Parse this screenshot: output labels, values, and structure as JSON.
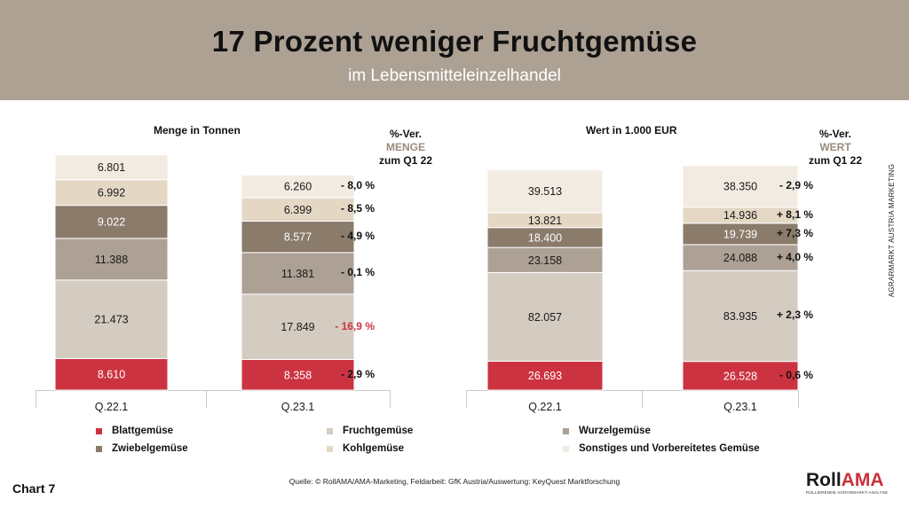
{
  "header": {
    "title": "17 Prozent weniger Fruchtgemüse",
    "subtitle": "im Lebensmitteleinzelhandel"
  },
  "colors": {
    "Blattgemuese": "#cc3340",
    "Fruchtgemuese": "#d4cbc1",
    "Wurzelgemuese": "#ada094",
    "Zwiebelgemuese": "#8a7b6b",
    "Kohlgemuese": "#e4d8c5",
    "Sonstiges": "#f1ebe1",
    "banner": "#ada194",
    "negative_highlight": "#cc3340"
  },
  "chart_data": [
    {
      "type": "stacked-bar",
      "title": "Menge in Tonnen",
      "categories": [
        "Q.22.1",
        "Q.23.1"
      ],
      "series": [
        {
          "name": "Blattgemüse",
          "values": [
            8610,
            8358
          ],
          "labels": [
            "8.610",
            "8.358"
          ],
          "change": "- 2,9 %"
        },
        {
          "name": "Fruchtgemüse",
          "values": [
            21473,
            17849
          ],
          "labels": [
            "21.473",
            "17.849"
          ],
          "change": "- 16,9 %"
        },
        {
          "name": "Wurzelgemüse",
          "values": [
            11388,
            11381
          ],
          "labels": [
            "11.388",
            "11.381"
          ],
          "change": "- 0,1 %"
        },
        {
          "name": "Zwiebelgemüse",
          "values": [
            9022,
            8577
          ],
          "labels": [
            "9.022",
            "8.577"
          ],
          "change": "- 4,9 %"
        },
        {
          "name": "Kohlgemüse",
          "values": [
            6992,
            6399
          ],
          "labels": [
            "6.992",
            "6.399"
          ],
          "change": "- 8,5 %"
        },
        {
          "name": "Sonstiges und Vorbereitetes Gemüse",
          "values": [
            6801,
            6260
          ],
          "labels": [
            "6.801",
            "6.260"
          ],
          "change": "- 8,0 %"
        }
      ],
      "change_header": {
        "line1": "%-Ver.",
        "line2": "MENGE",
        "line3": "zum Q1 22"
      }
    },
    {
      "type": "stacked-bar",
      "title": "Wert in 1.000 EUR",
      "categories": [
        "Q.22.1",
        "Q.23.1"
      ],
      "series": [
        {
          "name": "Blattgemüse",
          "values": [
            26693,
            26528
          ],
          "labels": [
            "26.693",
            "26.528"
          ],
          "change": "- 0,6 %"
        },
        {
          "name": "Fruchtgemüse",
          "values": [
            82057,
            83935
          ],
          "labels": [
            "82.057",
            "83.935"
          ],
          "change": "+ 2,3 %"
        },
        {
          "name": "Wurzelgemüse",
          "values": [
            23158,
            24088
          ],
          "labels": [
            "23.158",
            "24.088"
          ],
          "change": "+ 4,0 %"
        },
        {
          "name": "Zwiebelgemüse",
          "values": [
            18400,
            19739
          ],
          "labels": [
            "18.400",
            "19.739"
          ],
          "change": "+ 7,3 %"
        },
        {
          "name": "Kohlgemüse",
          "values": [
            13821,
            14936
          ],
          "labels": [
            "13.821",
            "14.936"
          ],
          "change": "+ 8,1 %"
        },
        {
          "name": "Sonstiges und Vorbereitetes Gemüse",
          "values": [
            39513,
            38350
          ],
          "labels": [
            "39.513",
            "38.350"
          ],
          "change": "- 2,9 %"
        }
      ],
      "change_header": {
        "line1": "%-Ver.",
        "line2": "WERT",
        "line3": "zum Q1 22"
      }
    }
  ],
  "legend": [
    {
      "label": "Blattgemüse",
      "color": "#cc3340"
    },
    {
      "label": "Fruchtgemüse",
      "color": "#d4cbc1"
    },
    {
      "label": "Wurzelgemüse",
      "color": "#ada094"
    },
    {
      "label": "Zwiebelgemüse",
      "color": "#8a7b6b"
    },
    {
      "label": "Kohlgemüse",
      "color": "#e4d8c5"
    },
    {
      "label": "Sonstiges und Vorbereitetes Gemüse",
      "color": "#f1ebe1"
    }
  ],
  "side_text": "AGRARMARKT AUSTRIA MARKETING",
  "footer": {
    "chart_number": "Chart 7",
    "source": "Quelle: © RollAMA/AMA-Marketing, Feldarbeit: GfK Austria/Auswertung: KeyQuest Marktforschung",
    "logo_roll": "Roll",
    "logo_ama": "AMA",
    "logo_sub": "ROLLIERENDE AGRARMARKT-ANALYSE"
  }
}
